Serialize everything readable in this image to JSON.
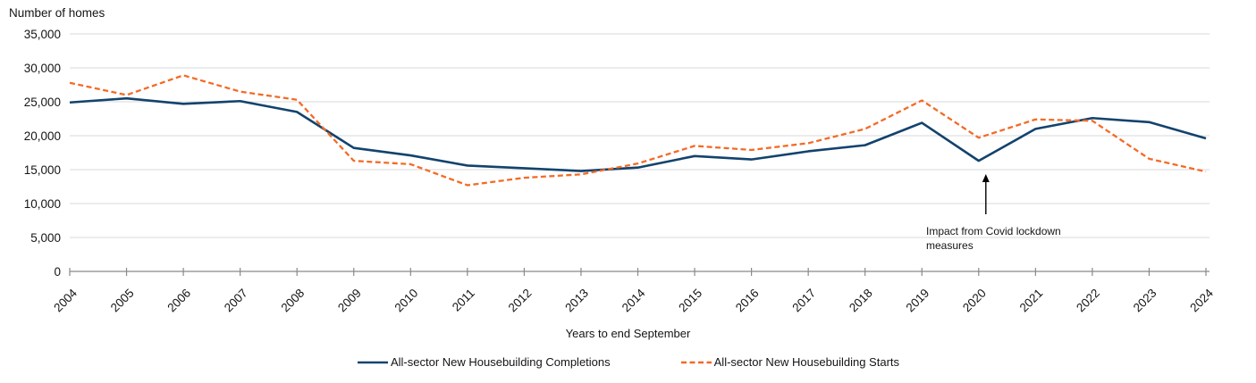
{
  "chart": {
    "title": "Number of homes",
    "x_axis_title": "Years to end September"
  },
  "chart_data": {
    "type": "line",
    "title": "Number of homes",
    "xlabel": "Years to end September",
    "ylabel": "Number of homes",
    "categories": [
      "2004",
      "2005",
      "2006",
      "2007",
      "2008",
      "2009",
      "2010",
      "2011",
      "2012",
      "2013",
      "2014",
      "2015",
      "2016",
      "2017",
      "2018",
      "2019",
      "2020",
      "2021",
      "2022",
      "2023",
      "2024"
    ],
    "series": [
      {
        "name": "All-sector New Housebuilding Completions",
        "color": "#12436D",
        "style": "solid",
        "values": [
          24900,
          25500,
          24700,
          25100,
          23500,
          18200,
          17100,
          15600,
          15200,
          14800,
          15300,
          17000,
          16500,
          17700,
          18600,
          21900,
          16300,
          21000,
          22600,
          22000,
          19600
        ]
      },
      {
        "name": "All-sector New Housebuilding Starts",
        "color": "#F46A25",
        "style": "dashed",
        "values": [
          27800,
          26000,
          28900,
          26500,
          25300,
          16300,
          15800,
          12700,
          13800,
          14300,
          15900,
          18500,
          17900,
          18900,
          21000,
          25200,
          19700,
          22400,
          22200,
          16600,
          14700
        ]
      }
    ],
    "ylim": [
      0,
      35000
    ],
    "y_tick_step": 5000,
    "y_tick_labels": [
      "0",
      "5,000",
      "10,000",
      "15,000",
      "20,000",
      "25,000",
      "30,000",
      "35,000"
    ],
    "grid": true,
    "legend_position": "bottom",
    "annotation": {
      "text": "Impact from Covid lockdown measures",
      "target_year": "2020"
    }
  },
  "colors": {
    "gridline": "#D9D9D9",
    "axis": "#898989",
    "text": "#141414",
    "completions": "#12436D",
    "starts": "#F46A25",
    "annotation_arrow": "#000000"
  }
}
